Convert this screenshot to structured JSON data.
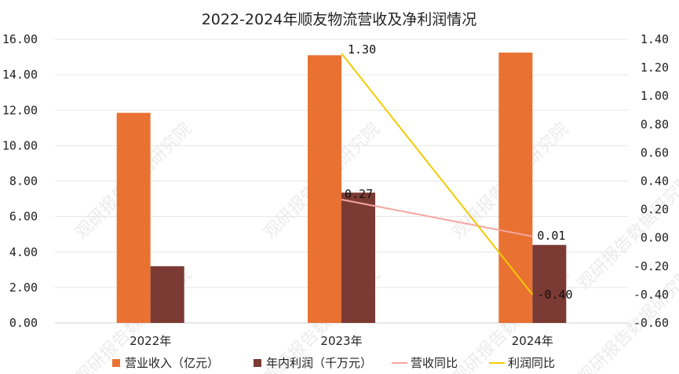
{
  "chart_data": {
    "type": "bar",
    "title": "2022-2024年顺友物流营收及净利润情况",
    "categories": [
      "2022年",
      "2023年",
      "2024年"
    ],
    "series": [
      {
        "name": "营业收入（亿元）",
        "type": "bar",
        "axis": "left",
        "color": "#E97132",
        "values": [
          11.85,
          15.1,
          15.25
        ]
      },
      {
        "name": "年内利润（千万元）",
        "type": "bar",
        "axis": "left",
        "color": "#7B3A33",
        "values": [
          3.2,
          7.35,
          4.4
        ]
      },
      {
        "name": "营收同比",
        "type": "line",
        "axis": "right",
        "color": "#F4A6A0",
        "values": [
          null,
          0.27,
          0.01
        ],
        "labels": [
          "",
          "0.27",
          "0.01"
        ]
      },
      {
        "name": "利润同比",
        "type": "line",
        "axis": "right",
        "color": "#F2CB05",
        "values": [
          null,
          1.3,
          -0.4
        ],
        "labels": [
          "",
          "1.30",
          "-0.40"
        ]
      }
    ],
    "y_left": {
      "min": 0,
      "max": 16,
      "ticks": [
        "0.00",
        "2.00",
        "4.00",
        "6.00",
        "8.00",
        "10.00",
        "12.00",
        "14.00",
        "16.00"
      ]
    },
    "y_right": {
      "min": -0.6,
      "max": 1.4,
      "ticks": [
        "-0.60",
        "-0.40",
        "-0.20",
        "0.00",
        "0.20",
        "0.40",
        "0.60",
        "0.80",
        "1.00",
        "1.20",
        "1.40"
      ]
    },
    "grid": true,
    "legend_position": "bottom",
    "watermark": "观研报告数据研究院"
  }
}
